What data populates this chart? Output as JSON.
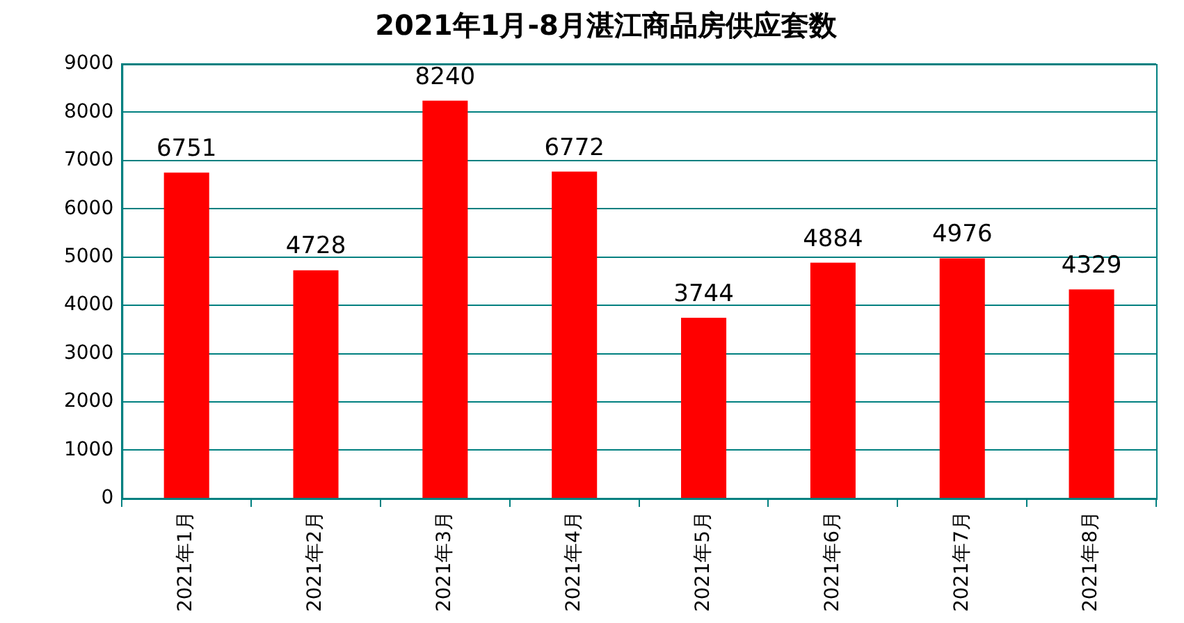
{
  "chart_data": {
    "type": "bar",
    "title": "2021年1月-8月湛江商品房供应套数",
    "categories": [
      "2021年1月",
      "2021年2月",
      "2021年3月",
      "2021年4月",
      "2021年5月",
      "2021年6月",
      "2021年7月",
      "2021年8月"
    ],
    "values": [
      6751,
      4728,
      8240,
      6772,
      3744,
      4884,
      4976,
      4329
    ],
    "color": "#ff0000",
    "ylim": [
      0,
      9000
    ],
    "yticks": [
      0,
      1000,
      2000,
      3000,
      4000,
      5000,
      6000,
      7000,
      8000,
      9000
    ],
    "grid": "y",
    "legend": false,
    "data_labels": true
  }
}
